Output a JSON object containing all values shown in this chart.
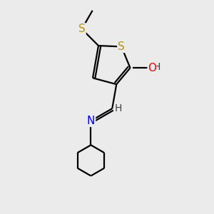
{
  "background_color": "#ebebeb",
  "atom_colors": {
    "S_ring": "#b8960c",
    "S_thio": "#b8960c",
    "N": "#0000ff",
    "O": "#ff0000",
    "C": "#000000",
    "H": "#404040"
  },
  "bond_color": "#000000",
  "bond_width": 1.6,
  "font_size_atom": 11,
  "font_size_small": 10,
  "figsize": [
    3.0,
    3.0
  ],
  "dpi": 100
}
